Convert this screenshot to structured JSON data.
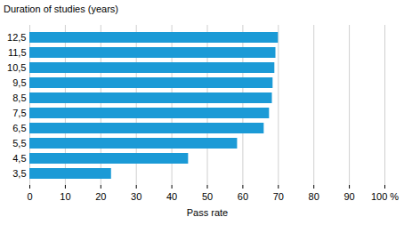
{
  "chart_data": {
    "type": "bar",
    "orientation": "horizontal",
    "title": "Duration of studies (years)",
    "xlabel": "Pass rate",
    "categories": [
      "12,5",
      "11,5",
      "10,5",
      "9,5",
      "8,5",
      "7,5",
      "6,5",
      "5,5",
      "4,5",
      "3,5"
    ],
    "values": [
      70,
      69.3,
      69,
      68.5,
      68.3,
      67.5,
      66,
      58.5,
      44.7,
      23
    ],
    "color": "#1b9ad6",
    "xlim": [
      0,
      100
    ],
    "xticks": [
      0,
      10,
      20,
      30,
      40,
      50,
      60,
      70,
      80,
      90,
      {
        "value": 100,
        "label": "100 %"
      }
    ],
    "grid": true
  }
}
